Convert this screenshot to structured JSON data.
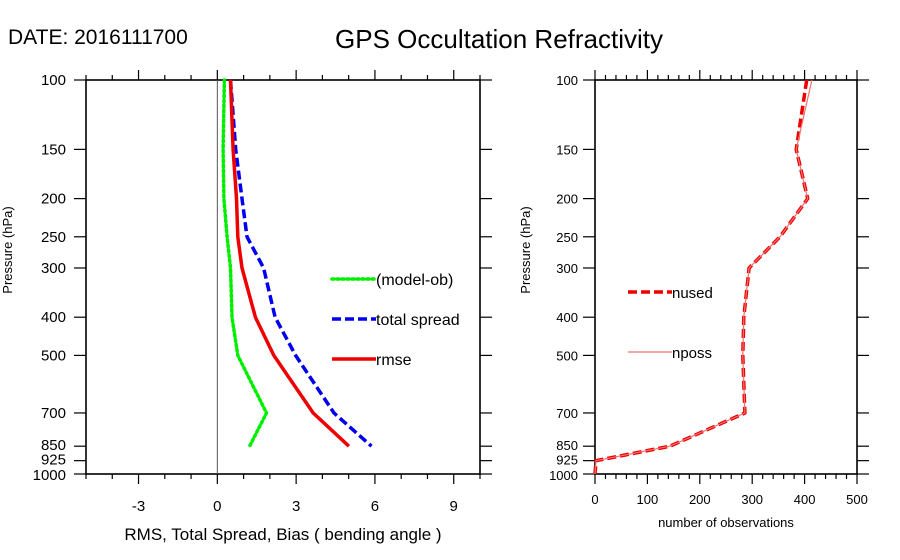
{
  "header": {
    "date_label": "DATE: 2016111700",
    "title": "GPS Occultation Refractivity"
  },
  "chart_data": [
    {
      "type": "line",
      "name": "rms-spread-bias",
      "title": "",
      "xlabel": "RMS, Total Spread, Bias ( bending angle )",
      "ylabel": "Pressure (hPa)",
      "xlim": [
        -5,
        10
      ],
      "ylim": [
        1000,
        100
      ],
      "yscale": "log",
      "xticks": [
        -3,
        0,
        3,
        6,
        9
      ],
      "xtick_labels": [
        "-3",
        "0",
        "3",
        "6",
        "9"
      ],
      "xminor_step": 1,
      "yticks": [
        100,
        150,
        200,
        250,
        300,
        400,
        500,
        700,
        850,
        925,
        1000
      ],
      "ytick_labels": [
        "100",
        "150",
        "200",
        "250",
        "300",
        "400",
        "500",
        "700",
        "850",
        "925",
        "1000"
      ],
      "zero_line": true,
      "grid": false,
      "legend_position": "center-right",
      "y": [
        100,
        150,
        200,
        250,
        300,
        400,
        500,
        700,
        850
      ],
      "series": [
        {
          "name": "(model-ob)",
          "color": "#00ee00",
          "style": "dotted",
          "values": [
            0.27,
            0.22,
            0.25,
            0.37,
            0.5,
            0.56,
            0.78,
            1.87,
            1.23
          ]
        },
        {
          "name": "total spread",
          "color": "#0000ee",
          "style": "dashed",
          "values": [
            0.5,
            0.7,
            0.94,
            1.13,
            1.76,
            2.2,
            2.98,
            4.44,
            5.87
          ]
        },
        {
          "name": "rmse",
          "color": "#ee0000",
          "style": "solid",
          "values": [
            0.5,
            0.6,
            0.73,
            0.78,
            0.94,
            1.45,
            2.15,
            3.65,
            5.01
          ]
        }
      ]
    },
    {
      "type": "line",
      "name": "observation-counts",
      "title": "",
      "xlabel": "number of observations",
      "ylabel": "Pressure (hPa)",
      "xlim": [
        0,
        500
      ],
      "ylim": [
        1000,
        100
      ],
      "yscale": "log",
      "xticks": [
        0,
        100,
        200,
        300,
        400,
        500
      ],
      "xtick_labels": [
        "0",
        "100",
        "200",
        "300",
        "400",
        "500"
      ],
      "xminor_step": 20,
      "yticks": [
        100,
        150,
        200,
        250,
        300,
        400,
        500,
        700,
        850,
        925,
        1000
      ],
      "ytick_labels": [
        "100",
        "150",
        "200",
        "250",
        "300",
        "400",
        "500",
        "700",
        "850",
        "925",
        "1000"
      ],
      "zero_line": false,
      "grid": false,
      "legend_position": "center-left",
      "y": [
        100,
        150,
        200,
        250,
        300,
        400,
        500,
        700,
        850,
        925,
        1000
      ],
      "series": [
        {
          "name": "nused",
          "color": "#ee0000",
          "style": "dashed",
          "values": [
            404,
            384,
            406,
            353,
            294,
            284,
            282,
            286,
            143,
            2,
            0
          ]
        },
        {
          "name": "nposs",
          "color": "#f07070",
          "style": "thin",
          "values": [
            414,
            384,
            406,
            353,
            294,
            284,
            282,
            286,
            143,
            2,
            0
          ]
        }
      ]
    }
  ]
}
